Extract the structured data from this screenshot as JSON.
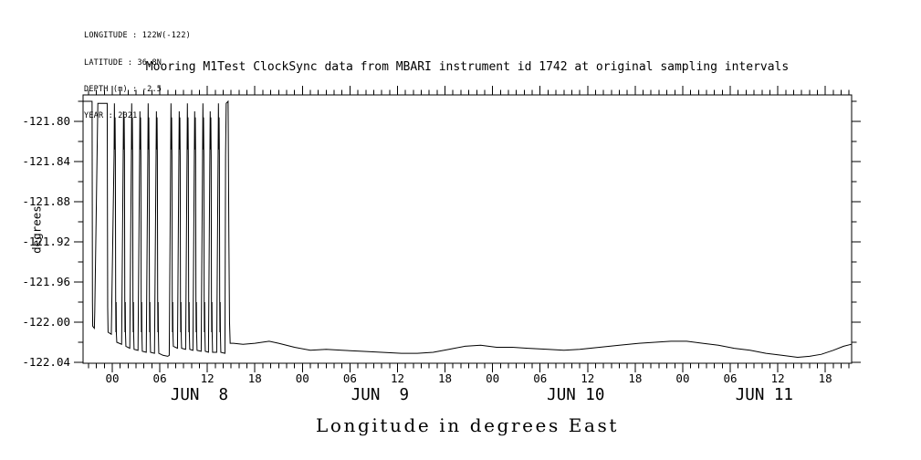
{
  "meta": {
    "lines": [
      "LONGITUDE : 122W(-122)",
      "LATITUDE : 36.8N",
      "DEPTH (m) : -2.5",
      "YEAR : 2021"
    ]
  },
  "title": "Mooring M1Test ClockSync data from MBARI instrument id 1742 at original sampling intervals",
  "y_axis_label": "degrees",
  "bottom_caption": "Longitude in degrees East",
  "colors": {
    "foreground": "#000000",
    "background": "#ffffff"
  },
  "chart_data": {
    "type": "line",
    "title": "Mooring M1Test ClockSync data from MBARI instrument id 1742 at original sampling intervals",
    "ylabel": "degrees",
    "xlabel": "Longitude in degrees East",
    "x_unit": "hours relative to JUN 8 00:00, year 2021",
    "xlim": [
      -3.68,
      93.35
    ],
    "ylim": [
      -122.04,
      -121.773
    ],
    "grid": false,
    "legend": null,
    "y_major_ticks": [
      {
        "value": -121.8,
        "label": "-121.80"
      },
      {
        "value": -121.84,
        "label": "-121.84"
      },
      {
        "value": -121.88,
        "label": "-121.88"
      },
      {
        "value": -121.92,
        "label": "-121.92"
      },
      {
        "value": -121.96,
        "label": "-121.96"
      },
      {
        "value": -122.0,
        "label": "-122.00"
      },
      {
        "value": -122.04,
        "label": "-122.04"
      }
    ],
    "y_minor_ticks": [
      -121.78,
      -121.82,
      -121.86,
      -121.9,
      -121.94,
      -121.98,
      -122.02
    ],
    "x_major_ticks": [
      {
        "h": 0,
        "label": "00"
      },
      {
        "h": 6,
        "label": "06"
      },
      {
        "h": 12,
        "label": "12"
      },
      {
        "h": 18,
        "label": "18"
      },
      {
        "h": 24,
        "label": "00"
      },
      {
        "h": 30,
        "label": "06"
      },
      {
        "h": 36,
        "label": "12"
      },
      {
        "h": 42,
        "label": "18"
      },
      {
        "h": 48,
        "label": "00"
      },
      {
        "h": 54,
        "label": "06"
      },
      {
        "h": 60,
        "label": "12"
      },
      {
        "h": 66,
        "label": "18"
      },
      {
        "h": 72,
        "label": "00"
      },
      {
        "h": 78,
        "label": "06"
      },
      {
        "h": 84,
        "label": "12"
      },
      {
        "h": 90,
        "label": "18"
      }
    ],
    "x_minor_tick_step_hours": 1,
    "date_labels": [
      {
        "h": 11.0,
        "label": "JUN  8"
      },
      {
        "h": 33.8,
        "label": "JUN  9"
      },
      {
        "h": 58.5,
        "label": "JUN 10"
      },
      {
        "h": 82.3,
        "label": "JUN 11"
      }
    ],
    "series": [
      {
        "name": "longitude",
        "points": [
          [
            -3.68,
            -121.78
          ],
          [
            -2.55,
            -121.78
          ],
          [
            -2.5,
            -121.98
          ],
          [
            -2.47,
            -122.004
          ],
          [
            -2.26,
            -122.006
          ],
          [
            -2.21,
            -121.99
          ],
          [
            -1.82,
            -121.782
          ],
          [
            -0.64,
            -121.782
          ],
          [
            -0.58,
            -121.985
          ],
          [
            -0.53,
            -122.01
          ],
          [
            -0.12,
            -122.012
          ],
          [
            0.23,
            -121.832
          ],
          [
            0.27,
            -121.782
          ],
          [
            0.31,
            -121.828
          ],
          [
            0.35,
            -121.796
          ],
          [
            0.39,
            -121.834
          ],
          [
            0.43,
            -121.978
          ],
          [
            0.46,
            -122.01
          ],
          [
            0.49,
            -121.98
          ],
          [
            0.52,
            -122.012
          ],
          [
            0.57,
            -122.02
          ],
          [
            1.18,
            -122.022
          ],
          [
            1.38,
            -121.832
          ],
          [
            1.42,
            -121.79
          ],
          [
            1.46,
            -121.828
          ],
          [
            1.5,
            -121.796
          ],
          [
            1.54,
            -121.834
          ],
          [
            1.58,
            -121.978
          ],
          [
            1.61,
            -122.01
          ],
          [
            1.64,
            -121.98
          ],
          [
            1.67,
            -122.012
          ],
          [
            1.72,
            -122.024
          ],
          [
            2.21,
            -122.026
          ],
          [
            2.41,
            -121.832
          ],
          [
            2.45,
            -121.782
          ],
          [
            2.49,
            -121.828
          ],
          [
            2.53,
            -121.796
          ],
          [
            2.57,
            -121.834
          ],
          [
            2.61,
            -121.978
          ],
          [
            2.64,
            -122.01
          ],
          [
            2.67,
            -121.98
          ],
          [
            2.7,
            -122.012
          ],
          [
            2.75,
            -122.027
          ],
          [
            3.25,
            -122.028
          ],
          [
            3.45,
            -121.832
          ],
          [
            3.49,
            -121.79
          ],
          [
            3.53,
            -121.828
          ],
          [
            3.57,
            -121.796
          ],
          [
            3.61,
            -121.834
          ],
          [
            3.65,
            -121.978
          ],
          [
            3.68,
            -122.01
          ],
          [
            3.71,
            -121.98
          ],
          [
            3.74,
            -122.012
          ],
          [
            3.79,
            -122.029
          ],
          [
            4.29,
            -122.03
          ],
          [
            4.49,
            -121.832
          ],
          [
            4.53,
            -121.782
          ],
          [
            4.57,
            -121.828
          ],
          [
            4.61,
            -121.796
          ],
          [
            4.65,
            -121.834
          ],
          [
            4.69,
            -121.978
          ],
          [
            4.72,
            -122.01
          ],
          [
            4.75,
            -121.98
          ],
          [
            4.78,
            -122.012
          ],
          [
            4.83,
            -122.03
          ],
          [
            5.33,
            -122.031
          ],
          [
            5.53,
            -121.832
          ],
          [
            5.57,
            -121.79
          ],
          [
            5.61,
            -121.828
          ],
          [
            5.65,
            -121.796
          ],
          [
            5.69,
            -121.834
          ],
          [
            5.73,
            -121.978
          ],
          [
            5.76,
            -122.01
          ],
          [
            5.79,
            -121.98
          ],
          [
            5.82,
            -122.012
          ],
          [
            5.87,
            -122.031
          ],
          [
            6.4,
            -122.033
          ],
          [
            7.0,
            -122.034
          ],
          [
            7.19,
            -122.033
          ],
          [
            7.37,
            -121.832
          ],
          [
            7.41,
            -121.782
          ],
          [
            7.45,
            -121.828
          ],
          [
            7.49,
            -121.796
          ],
          [
            7.53,
            -121.834
          ],
          [
            7.57,
            -121.978
          ],
          [
            7.6,
            -122.01
          ],
          [
            7.63,
            -121.98
          ],
          [
            7.66,
            -122.012
          ],
          [
            7.71,
            -122.024
          ],
          [
            8.23,
            -122.026
          ],
          [
            8.41,
            -121.832
          ],
          [
            8.45,
            -121.79
          ],
          [
            8.49,
            -121.828
          ],
          [
            8.53,
            -121.796
          ],
          [
            8.57,
            -121.834
          ],
          [
            8.61,
            -121.978
          ],
          [
            8.64,
            -122.01
          ],
          [
            8.67,
            -121.98
          ],
          [
            8.7,
            -122.012
          ],
          [
            8.75,
            -122.026
          ],
          [
            9.26,
            -122.027
          ],
          [
            9.44,
            -121.832
          ],
          [
            9.48,
            -121.782
          ],
          [
            9.52,
            -121.828
          ],
          [
            9.56,
            -121.796
          ],
          [
            9.6,
            -121.834
          ],
          [
            9.64,
            -121.978
          ],
          [
            9.67,
            -122.01
          ],
          [
            9.7,
            -121.98
          ],
          [
            9.73,
            -122.012
          ],
          [
            9.78,
            -122.027
          ],
          [
            10.18,
            -122.028
          ],
          [
            10.36,
            -121.832
          ],
          [
            10.4,
            -121.79
          ],
          [
            10.44,
            -121.828
          ],
          [
            10.48,
            -121.796
          ],
          [
            10.52,
            -121.834
          ],
          [
            10.56,
            -121.978
          ],
          [
            10.59,
            -122.01
          ],
          [
            10.62,
            -121.98
          ],
          [
            10.65,
            -122.012
          ],
          [
            10.7,
            -122.028
          ],
          [
            11.22,
            -122.029
          ],
          [
            11.4,
            -121.832
          ],
          [
            11.44,
            -121.782
          ],
          [
            11.48,
            -121.828
          ],
          [
            11.52,
            -121.796
          ],
          [
            11.56,
            -121.834
          ],
          [
            11.6,
            -121.978
          ],
          [
            11.63,
            -122.01
          ],
          [
            11.66,
            -121.98
          ],
          [
            11.69,
            -122.012
          ],
          [
            11.74,
            -122.029
          ],
          [
            12.14,
            -122.03
          ],
          [
            12.32,
            -121.832
          ],
          [
            12.36,
            -121.79
          ],
          [
            12.4,
            -121.828
          ],
          [
            12.44,
            -121.796
          ],
          [
            12.48,
            -121.834
          ],
          [
            12.52,
            -121.978
          ],
          [
            12.55,
            -122.01
          ],
          [
            12.58,
            -121.98
          ],
          [
            12.61,
            -122.012
          ],
          [
            12.66,
            -122.03
          ],
          [
            13.18,
            -122.03
          ],
          [
            13.36,
            -121.832
          ],
          [
            13.4,
            -121.782
          ],
          [
            13.44,
            -121.828
          ],
          [
            13.48,
            -121.796
          ],
          [
            13.52,
            -121.834
          ],
          [
            13.56,
            -121.978
          ],
          [
            13.59,
            -122.01
          ],
          [
            13.62,
            -121.98
          ],
          [
            13.65,
            -122.012
          ],
          [
            13.7,
            -122.03
          ],
          [
            14.22,
            -122.031
          ],
          [
            14.3,
            -121.834
          ],
          [
            14.38,
            -121.782
          ],
          [
            14.62,
            -121.78
          ],
          [
            14.72,
            -121.92
          ],
          [
            14.8,
            -122.0
          ],
          [
            14.88,
            -122.021
          ],
          [
            15.3,
            -122.021
          ],
          [
            16.5,
            -122.022
          ],
          [
            18.0,
            -122.021
          ],
          [
            19.8,
            -122.019
          ],
          [
            21.0,
            -122.021
          ],
          [
            23.0,
            -122.025
          ],
          [
            25.0,
            -122.028
          ],
          [
            27.0,
            -122.027
          ],
          [
            29.0,
            -122.028
          ],
          [
            31.5,
            -122.029
          ],
          [
            34.0,
            -122.03
          ],
          [
            36.5,
            -122.031
          ],
          [
            38.5,
            -122.031
          ],
          [
            40.5,
            -122.03
          ],
          [
            42.5,
            -122.027
          ],
          [
            44.5,
            -122.024
          ],
          [
            46.5,
            -122.023
          ],
          [
            48.5,
            -122.025
          ],
          [
            50.5,
            -122.025
          ],
          [
            52.5,
            -122.026
          ],
          [
            55.0,
            -122.027
          ],
          [
            57.0,
            -122.028
          ],
          [
            59.0,
            -122.027
          ],
          [
            61.5,
            -122.025
          ],
          [
            64.0,
            -122.023
          ],
          [
            66.5,
            -122.021
          ],
          [
            68.5,
            -122.02
          ],
          [
            70.5,
            -122.019
          ],
          [
            72.5,
            -122.019
          ],
          [
            74.5,
            -122.021
          ],
          [
            76.5,
            -122.023
          ],
          [
            78.5,
            -122.026
          ],
          [
            80.5,
            -122.028
          ],
          [
            82.5,
            -122.031
          ],
          [
            84.5,
            -122.033
          ],
          [
            86.5,
            -122.035
          ],
          [
            88.0,
            -122.034
          ],
          [
            89.5,
            -122.032
          ],
          [
            91.0,
            -122.028
          ],
          [
            92.3,
            -122.024
          ],
          [
            93.3,
            -122.022
          ]
        ]
      }
    ]
  }
}
